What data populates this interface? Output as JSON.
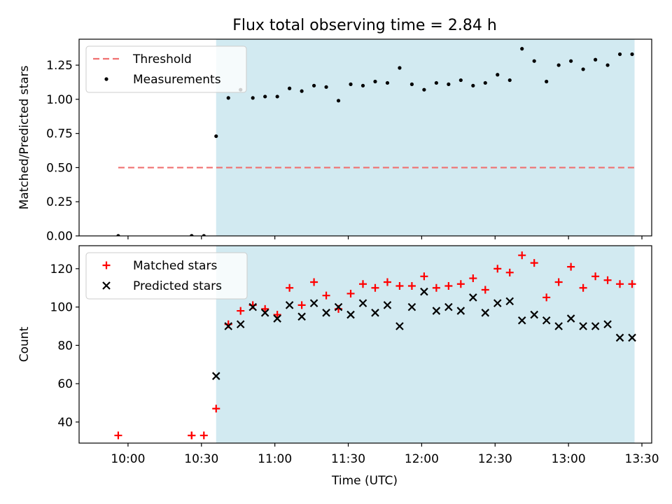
{
  "chart_data": {
    "title": "Flux total observing time = 2.84 h",
    "xlabel": "Time (UTC)",
    "x_tick_labels": [
      "10:00",
      "10:30",
      "11:00",
      "11:30",
      "12:00",
      "12:30",
      "13:00",
      "13:30"
    ],
    "x_ticks": [
      "10:00",
      "10:30",
      "11:00",
      "11:30",
      "12:00",
      "12:30",
      "13:00",
      "13:30"
    ],
    "xlim": [
      "09:40",
      "13:34"
    ],
    "shaded_region": {
      "x": [
        "10:36",
        "13:27"
      ],
      "color": "#add8e6"
    },
    "panels": [
      {
        "type": "scatter",
        "ylabel": "Matched/Predicted stars",
        "ylim": [
          0,
          1.44
        ],
        "y_ticks": [
          0.0,
          0.25,
          0.5,
          0.75,
          1.0,
          1.25
        ],
        "y_tick_labels": [
          "0.00",
          "0.25",
          "0.50",
          "0.75",
          "1.00",
          "1.25"
        ],
        "legend_placement": "upper-left",
        "threshold": {
          "name": "Threshold",
          "value": 0.5,
          "x": [
            "09:56",
            "13:27"
          ],
          "color": "#f07070",
          "style": "dashed"
        },
        "series": [
          {
            "name": "Measurements",
            "color": "#000000",
            "marker": "dot",
            "points": [
              [
                "09:56",
                0.0
              ],
              [
                "10:26",
                0.0
              ],
              [
                "10:26",
                0.0
              ],
              [
                "10:31",
                0.0
              ],
              [
                "10:36",
                0.73
              ],
              [
                "10:41",
                1.01
              ],
              [
                "10:46",
                1.07
              ],
              [
                "10:51",
                1.01
              ],
              [
                "10:56",
                1.02
              ],
              [
                "11:01",
                1.02
              ],
              [
                "11:06",
                1.08
              ],
              [
                "11:11",
                1.06
              ],
              [
                "11:16",
                1.1
              ],
              [
                "11:21",
                1.09
              ],
              [
                "11:26",
                0.99
              ],
              [
                "11:31",
                1.11
              ],
              [
                "11:36",
                1.1
              ],
              [
                "11:41",
                1.13
              ],
              [
                "11:46",
                1.12
              ],
              [
                "11:51",
                1.23
              ],
              [
                "11:56",
                1.11
              ],
              [
                "12:01",
                1.07
              ],
              [
                "12:06",
                1.12
              ],
              [
                "12:11",
                1.11
              ],
              [
                "12:16",
                1.14
              ],
              [
                "12:21",
                1.1
              ],
              [
                "12:26",
                1.12
              ],
              [
                "12:31",
                1.18
              ],
              [
                "12:36",
                1.14
              ],
              [
                "12:41",
                1.37
              ],
              [
                "12:46",
                1.28
              ],
              [
                "12:51",
                1.13
              ],
              [
                "12:56",
                1.25
              ],
              [
                "13:01",
                1.28
              ],
              [
                "13:06",
                1.22
              ],
              [
                "13:11",
                1.29
              ],
              [
                "13:16",
                1.25
              ],
              [
                "13:21",
                1.33
              ],
              [
                "13:26",
                1.33
              ]
            ]
          }
        ]
      },
      {
        "type": "scatter",
        "ylabel": "Count",
        "ylim": [
          29,
          132
        ],
        "y_ticks": [
          40,
          60,
          80,
          100,
          120
        ],
        "y_tick_labels": [
          "40",
          "60",
          "80",
          "100",
          "120"
        ],
        "legend_placement": "upper-left",
        "series": [
          {
            "name": "Matched stars",
            "color": "#ff0000",
            "marker": "plus",
            "points": [
              [
                "09:56",
                33
              ],
              [
                "10:26",
                33
              ],
              [
                "10:26",
                33
              ],
              [
                "10:31",
                33
              ],
              [
                "10:36",
                47
              ],
              [
                "10:41",
                91
              ],
              [
                "10:46",
                98
              ],
              [
                "10:51",
                101
              ],
              [
                "10:56",
                99
              ],
              [
                "11:01",
                96
              ],
              [
                "11:06",
                110
              ],
              [
                "11:11",
                101
              ],
              [
                "11:16",
                113
              ],
              [
                "11:21",
                106
              ],
              [
                "11:26",
                99
              ],
              [
                "11:31",
                107
              ],
              [
                "11:36",
                112
              ],
              [
                "11:41",
                110
              ],
              [
                "11:46",
                113
              ],
              [
                "11:51",
                111
              ],
              [
                "11:56",
                111
              ],
              [
                "12:01",
                116
              ],
              [
                "12:06",
                110
              ],
              [
                "12:11",
                111
              ],
              [
                "12:16",
                112
              ],
              [
                "12:21",
                115
              ],
              [
                "12:26",
                109
              ],
              [
                "12:31",
                120
              ],
              [
                "12:36",
                118
              ],
              [
                "12:41",
                127
              ],
              [
                "12:46",
                123
              ],
              [
                "12:51",
                105
              ],
              [
                "12:56",
                113
              ],
              [
                "13:01",
                121
              ],
              [
                "13:06",
                110
              ],
              [
                "13:11",
                116
              ],
              [
                "13:16",
                114
              ],
              [
                "13:21",
                112
              ],
              [
                "13:26",
                112
              ]
            ]
          },
          {
            "name": "Predicted stars",
            "color": "#000000",
            "marker": "x",
            "points": [
              [
                "10:36",
                64
              ],
              [
                "10:41",
                90
              ],
              [
                "10:46",
                91
              ],
              [
                "10:51",
                100
              ],
              [
                "10:56",
                97
              ],
              [
                "11:01",
                94
              ],
              [
                "11:06",
                101
              ],
              [
                "11:11",
                95
              ],
              [
                "11:16",
                102
              ],
              [
                "11:21",
                97
              ],
              [
                "11:26",
                100
              ],
              [
                "11:31",
                96
              ],
              [
                "11:36",
                102
              ],
              [
                "11:41",
                97
              ],
              [
                "11:46",
                101
              ],
              [
                "11:51",
                90
              ],
              [
                "11:56",
                100
              ],
              [
                "12:01",
                108
              ],
              [
                "12:06",
                98
              ],
              [
                "12:11",
                100
              ],
              [
                "12:16",
                98
              ],
              [
                "12:21",
                105
              ],
              [
                "12:26",
                97
              ],
              [
                "12:31",
                102
              ],
              [
                "12:36",
                103
              ],
              [
                "12:41",
                93
              ],
              [
                "12:46",
                96
              ],
              [
                "12:51",
                93
              ],
              [
                "12:56",
                90
              ],
              [
                "13:01",
                94
              ],
              [
                "13:06",
                90
              ],
              [
                "13:11",
                90
              ],
              [
                "13:16",
                91
              ],
              [
                "13:21",
                84
              ],
              [
                "13:26",
                84
              ]
            ]
          }
        ]
      }
    ]
  }
}
